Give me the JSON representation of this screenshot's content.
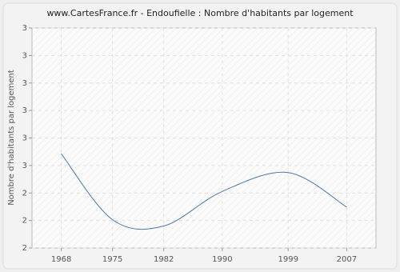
{
  "chart_data": {
    "type": "line",
    "title": "www.CartesFrance.fr - Endoufielle : Nombre d'habitants par logement",
    "y_label": "Nombre d'habitants par logement",
    "x": [
      1968,
      1975,
      1982,
      1990,
      1999,
      2007
    ],
    "series": [
      {
        "name": "Nombre d'habitants par logement",
        "color": "#4a7aaa",
        "values": [
          2.6,
          2.18,
          2.14,
          2.36,
          2.48,
          2.26
        ]
      }
    ],
    "xlim": [
      1964,
      2011
    ],
    "xticks": [
      1968,
      1975,
      1982,
      1990,
      1999,
      2007
    ],
    "ylim": [
      2,
      3.4
    ],
    "yticks": [
      2,
      {
        "value": 2.175,
        "label": "2"
      },
      {
        "value": 2.35,
        "label": "2"
      },
      {
        "value": 2.525,
        "label": "3"
      },
      {
        "value": 2.7,
        "label": "3"
      },
      {
        "value": 2.875,
        "label": "3"
      },
      {
        "value": 3.05,
        "label": "3"
      },
      {
        "value": 3.225,
        "label": "3"
      },
      {
        "value": 3.4,
        "label": "3"
      }
    ],
    "grid": true
  }
}
